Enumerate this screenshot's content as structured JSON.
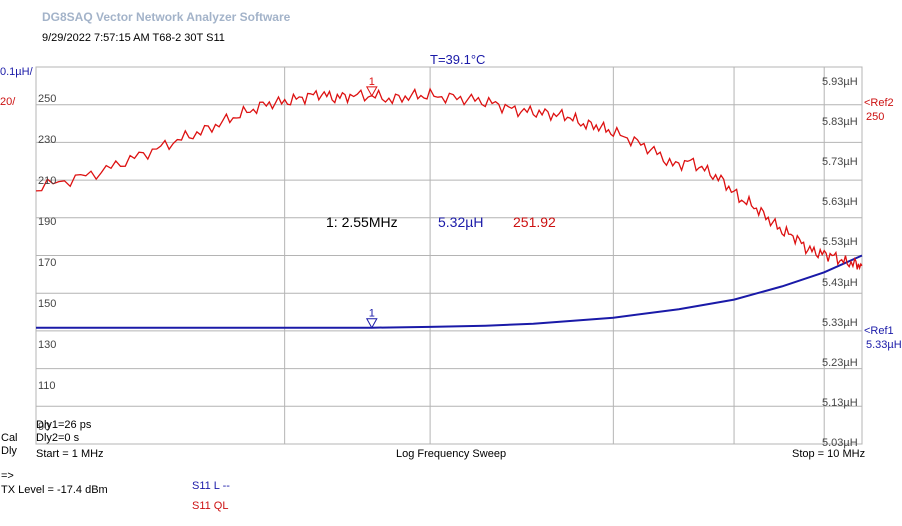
{
  "header": {
    "app_title": "DG8SAQ Vector Network Analyzer Software",
    "timestamp": "9/29/2022   7:57:15 AM    T68-2 30T S11",
    "temperature": "T=39.1°C"
  },
  "scale": {
    "left_top": "0.1µH/",
    "left_bottom": "20/",
    "ref2_label": "<Ref2",
    "ref2_value": "250",
    "ref1_label": "<Ref1",
    "ref1_value": "5.33µH"
  },
  "marker": {
    "id": "1",
    "readout_freq": "1: 2.55MHz",
    "readout_l": "5.32µH",
    "readout_q": "251.92"
  },
  "footer": {
    "dly1": "Dly1=26 ps",
    "dly2": "Dly2=0 s",
    "cal": "Cal",
    "dly": "Dly",
    "start": "Start = 1 MHz",
    "sweep": "Log Frequency Sweep",
    "stop": "Stop = 10 MHz",
    "arrow": "=>",
    "tx_level": "TX Level = -17.4 dBm",
    "legend_l": "S11  L --",
    "legend_ql": "S11  QL"
  },
  "colors": {
    "l_trace": "#1a1aa8",
    "q_trace": "#dd1111",
    "grid": "#b4b4b4"
  },
  "chart_data": {
    "type": "line",
    "x_scale": "log",
    "xlim": [
      1,
      10
    ],
    "xlabel": "Log Frequency Sweep",
    "y_left": {
      "ticks": [
        "250",
        "230",
        "210",
        "190",
        "170",
        "150",
        "130",
        "110",
        "90"
      ],
      "ylim": [
        82,
        266
      ]
    },
    "y_right": {
      "ticks": [
        "5.93µH",
        "5.83µH",
        "5.73µH",
        "5.63µH",
        "5.53µH",
        "5.43µH",
        "5.33µH",
        "5.23µH",
        "5.13µH",
        "5.03µH"
      ],
      "ylim": [
        5.03,
        5.97
      ]
    },
    "series": [
      {
        "name": "S11  L --",
        "axis": "right",
        "x": [
          1.0,
          1.5,
          2.0,
          2.55,
          3.0,
          3.5,
          4.0,
          5.0,
          6.0,
          7.0,
          8.0,
          9.0,
          10.0
        ],
        "values": [
          5.32,
          5.32,
          5.32,
          5.32,
          5.322,
          5.325,
          5.33,
          5.345,
          5.366,
          5.39,
          5.423,
          5.458,
          5.5
        ]
      },
      {
        "name": "S11  QL",
        "axis": "left",
        "x": [
          1.0,
          1.1,
          1.2,
          1.3,
          1.4,
          1.5,
          1.6,
          1.7,
          1.8,
          1.9,
          2.0,
          2.1,
          2.2,
          2.3,
          2.4,
          2.55,
          2.7,
          2.85,
          3.0,
          3.2,
          3.4,
          3.6,
          3.8,
          4.0,
          4.2,
          4.4,
          4.6,
          4.8,
          5.0,
          5.3,
          5.6,
          5.9,
          6.2,
          6.5,
          6.8,
          7.1,
          7.4,
          7.7,
          8.0,
          8.3,
          8.6,
          8.9,
          9.2,
          9.5,
          9.8,
          10.0
        ],
        "values": [
          207,
          211,
          215,
          221,
          226,
          231,
          235,
          240,
          244,
          248,
          249,
          251,
          253,
          251,
          252,
          252,
          250,
          252,
          252,
          251,
          250,
          248,
          245,
          244,
          243,
          242,
          238,
          237,
          234,
          230,
          225,
          218,
          220,
          215,
          210,
          202,
          198,
          192,
          186,
          183,
          177,
          175,
          174,
          171,
          170,
          169
        ]
      }
    ],
    "marker": {
      "x": 2.55,
      "l": 5.32,
      "q": 251.92
    }
  }
}
